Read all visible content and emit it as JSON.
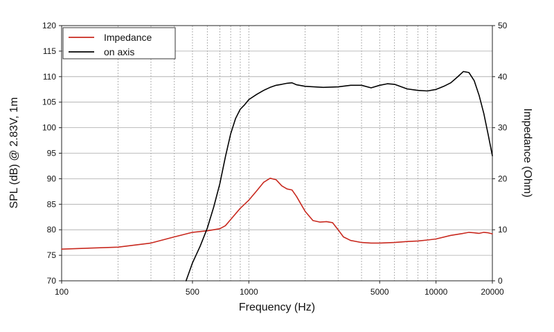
{
  "chart_data": {
    "type": "line",
    "title": "",
    "xlabel": "Frequency (Hz)",
    "ylabel_left": "SPL (dB) @ 2.83V, 1m",
    "ylabel_right": "Impedance (Ohm)",
    "x_scale": "log",
    "xlim": [
      100,
      20000
    ],
    "ylim_left": [
      70,
      120
    ],
    "ylim_right": [
      0,
      50
    ],
    "x_tick_labels": [
      "100",
      "500",
      "1000",
      "5000",
      "10000",
      "20000"
    ],
    "y_left_tick_labels": [
      "70",
      "75",
      "80",
      "85",
      "90",
      "95",
      "100",
      "105",
      "110",
      "115",
      "120"
    ],
    "y_right_tick_labels": [
      "0",
      "10",
      "20",
      "30",
      "40",
      "50"
    ],
    "grid": true,
    "legend_position": "top-left",
    "series": [
      {
        "name": "Impedance",
        "axis": "right",
        "color": "#c8281e",
        "x": [
          100,
          200,
          300,
          400,
          500,
          600,
          700,
          750,
          800,
          900,
          1000,
          1100,
          1200,
          1300,
          1400,
          1500,
          1600,
          1700,
          1800,
          1900,
          2000,
          2200,
          2400,
          2600,
          2800,
          3000,
          3200,
          3500,
          4000,
          4500,
          5000,
          6000,
          7000,
          8000,
          9000,
          10000,
          12000,
          14000,
          15000,
          16000,
          17000,
          18000,
          19000,
          20000
        ],
        "values": [
          6.2,
          6.6,
          7.4,
          8.6,
          9.5,
          9.8,
          10.2,
          10.8,
          12.0,
          14.2,
          15.8,
          17.6,
          19.3,
          20.1,
          19.8,
          18.6,
          18.0,
          17.8,
          16.5,
          15.0,
          13.6,
          11.8,
          11.5,
          11.6,
          11.4,
          10.0,
          8.6,
          7.9,
          7.5,
          7.4,
          7.4,
          7.5,
          7.7,
          7.8,
          8.0,
          8.2,
          8.9,
          9.3,
          9.5,
          9.4,
          9.3,
          9.5,
          9.4,
          9.2
        ]
      },
      {
        "name": "on axis",
        "axis": "left",
        "color": "#000000",
        "x": [
          462,
          500,
          550,
          600,
          650,
          700,
          750,
          800,
          850,
          900,
          950,
          1000,
          1100,
          1200,
          1300,
          1400,
          1500,
          1600,
          1700,
          1800,
          2000,
          2500,
          3000,
          3500,
          4000,
          4500,
          5000,
          5500,
          6000,
          7000,
          8000,
          9000,
          10000,
          11000,
          12000,
          13000,
          14000,
          15000,
          16000,
          17000,
          18000,
          19000,
          20000
        ],
        "values": [
          70.0,
          73.5,
          76.8,
          80.3,
          84.5,
          89.0,
          94.3,
          98.8,
          101.8,
          103.6,
          104.5,
          105.5,
          106.5,
          107.3,
          107.9,
          108.3,
          108.5,
          108.7,
          108.8,
          108.4,
          108.1,
          107.9,
          108.0,
          108.3,
          108.3,
          107.8,
          108.3,
          108.6,
          108.5,
          107.6,
          107.3,
          107.2,
          107.5,
          108.1,
          108.8,
          109.9,
          111.0,
          110.8,
          109.2,
          106.3,
          102.8,
          98.6,
          94.5
        ]
      }
    ]
  }
}
